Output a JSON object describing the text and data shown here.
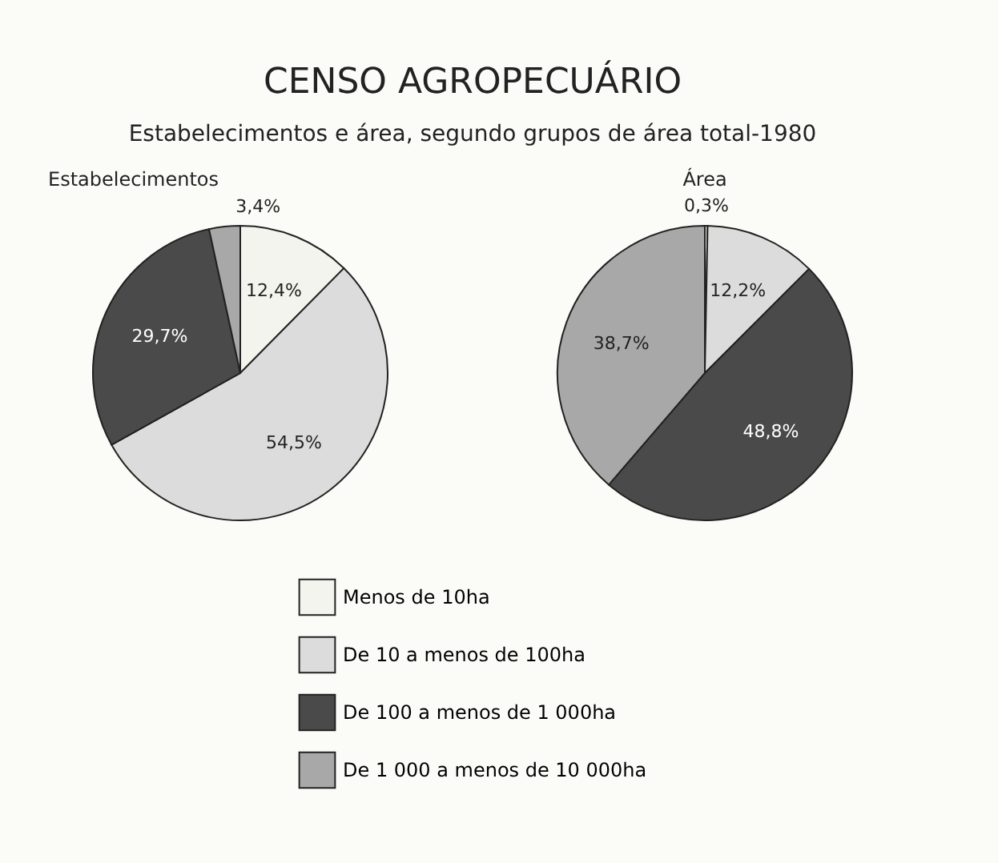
{
  "chart_data": [
    {
      "type": "pie",
      "title": "Estabelecimentos",
      "annotations": [
        "CENSO AGROPECUÁRIO",
        "Estabelecimentos e área, segundo grupos de área total-1980"
      ],
      "categories": [
        "Menos de 10ha",
        "De 10 a menos de 100ha",
        "De 100 a menos de 1 000ha",
        "De 1 000 a menos de 10 000ha"
      ],
      "values": [
        12.4,
        54.5,
        29.7,
        3.4
      ],
      "value_labels": [
        "12,4%",
        "54,5%",
        "29,7%",
        "3,4%"
      ],
      "colors": [
        "#f4f4ee",
        "#dcdcdc",
        "#4a4a4a",
        "#a8a8a8"
      ],
      "legend": "bottom"
    },
    {
      "type": "pie",
      "title": "Área",
      "categories": [
        null,
        null,
        null,
        null
      ],
      "values": [
        0.3,
        12.2,
        48.8,
        38.7
      ],
      "value_labels": [
        "0,3%",
        "12,2%",
        "48,8%",
        "38,7%"
      ],
      "colors": [
        "#f4f4ee",
        "#dcdcdc",
        "#4a4a4a",
        "#a8a8a8"
      ]
    }
  ]
}
